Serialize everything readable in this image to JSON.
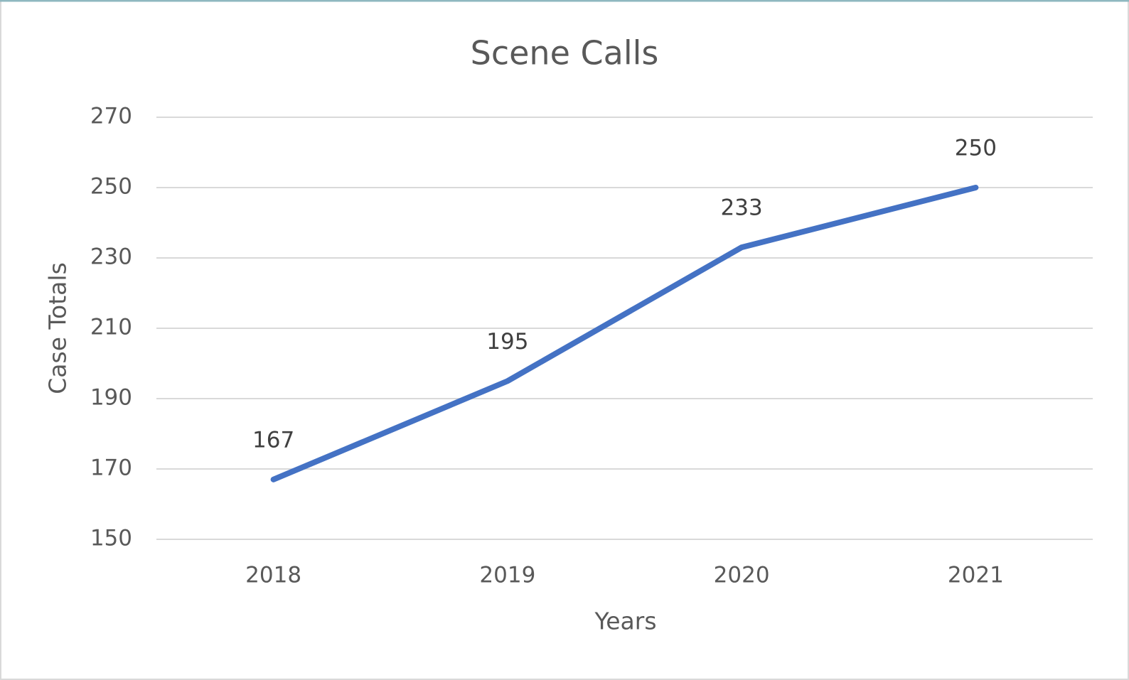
{
  "chart_data": {
    "type": "line",
    "title": "Scene Calls",
    "x_label": "Years",
    "y_label": "Case Totals",
    "categories": [
      "2018",
      "2019",
      "2020",
      "2021"
    ],
    "values": [
      167,
      195,
      233,
      250
    ],
    "color": "#4472c4",
    "ylim": [
      150,
      270
    ],
    "yticks": [
      150,
      170,
      190,
      210,
      230,
      250,
      270
    ],
    "grid": true,
    "data_labels": true
  }
}
